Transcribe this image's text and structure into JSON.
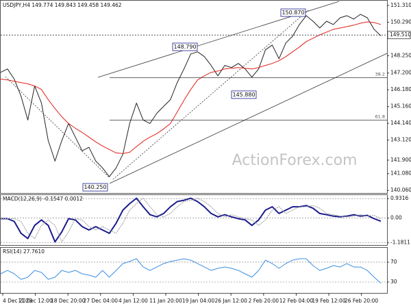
{
  "chart_data": [
    {
      "type": "line",
      "title": "USDJPY,H4 149.774 149.843 149.458 149.462",
      "watermark": "ActionForex.com",
      "ylim": [
        139.9,
        151.6
      ],
      "yticks": [
        {
          "value": 151.31,
          "label": "151.310"
        },
        {
          "value": 150.29,
          "label": "150.290"
        },
        {
          "value": 148.25,
          "label": "148.250"
        },
        {
          "value": 147.2,
          "label": "147.200"
        },
        {
          "value": 146.18,
          "label": "146.180"
        },
        {
          "value": 145.16,
          "label": "145.160"
        },
        {
          "value": 144.14,
          "label": "144.140"
        },
        {
          "value": 143.12,
          "label": "143.120"
        },
        {
          "value": 141.9,
          "label": "141.900"
        },
        {
          "value": 141.08,
          "label": "141.080"
        },
        {
          "value": 140.06,
          "label": "140.060"
        }
      ],
      "grid": false,
      "series": [
        {
          "color": "#222222",
          "values": [
            147.24,
            147.45,
            146.83,
            145.79,
            144.34,
            146.41,
            145.37,
            143.09,
            141.84,
            143.09,
            144.13,
            143.3,
            142.47,
            142.68,
            141.84,
            141.43,
            140.89,
            141.43,
            142.26,
            144.13,
            145.37,
            144.34,
            144.13,
            144.75,
            145.17,
            145.58,
            146.62,
            147.45,
            148.36,
            148.49,
            148.2,
            147.66,
            147.03,
            147.66,
            147.53,
            147.78,
            147.45,
            146.95,
            147.45,
            148.61,
            148.9,
            148.07,
            149.03,
            149.44,
            150.15,
            150.69,
            150.35,
            149.94,
            150.35,
            150.15,
            150.56,
            150.69,
            150.48,
            150.77,
            150.56,
            149.86,
            149.46
          ]
        },
        {
          "color": "#e0201a",
          "values": [
            146.83,
            146.78,
            146.7,
            146.62,
            146.54,
            146.41,
            146.2,
            145.58,
            145.04,
            144.54,
            144.13,
            143.84,
            143.59,
            143.3,
            143.01,
            142.76,
            142.55,
            142.34,
            142.3,
            142.38,
            142.72,
            143.05,
            143.3,
            143.51,
            143.8,
            144.13,
            144.83,
            145.54,
            146.2,
            146.78,
            147.03,
            147.24,
            147.32,
            147.45,
            147.49,
            147.53,
            147.49,
            147.45,
            147.53,
            147.66,
            147.78,
            147.95,
            148.2,
            148.49,
            148.78,
            149.11,
            149.32,
            149.52,
            149.69,
            149.86,
            149.94,
            150.02,
            150.11,
            150.23,
            150.31,
            150.27,
            150.15
          ]
        }
      ],
      "annotations": [
        {
          "label": "150.870",
          "value": 150.87
        },
        {
          "label": "148.790",
          "value": 148.79
        },
        {
          "label": "145.880",
          "value": 145.88
        },
        {
          "label": "140.250",
          "value": 140.25
        }
      ],
      "fib_levels": [
        {
          "label": "38.2",
          "value": 146.91
        },
        {
          "label": "61.8",
          "value": 144.34
        }
      ],
      "current_price": {
        "label": "149.510",
        "value": 149.51
      }
    },
    {
      "type": "line",
      "title": "MACD(12,26,9) -0.1547 0.0012",
      "ylim": [
        -1.29,
        1.1
      ],
      "yticks": [
        0.9316,
        {
          "value": 0,
          "label": "0.00"
        },
        -1.1811
      ],
      "grid": true,
      "series": [
        {
          "color": "#1a1a8c",
          "values": [
            -0.03,
            -0.03,
            -0.16,
            -0.73,
            -0.98,
            -0.35,
            -0.09,
            -0.35,
            -1.14,
            -0.66,
            -0.03,
            -0.09,
            -0.41,
            -0.57,
            -0.41,
            -0.57,
            -0.73,
            -0.25,
            0.38,
            0.69,
            0.95,
            0.54,
            0.16,
            0.06,
            0.22,
            0.54,
            0.79,
            0.85,
            0.95,
            0.79,
            0.54,
            0.22,
            0.06,
            0.16,
            0.06,
            -0.03,
            -0.09,
            -0.35,
            -0.09,
            0.38,
            0.54,
            0.22,
            0.38,
            0.54,
            0.54,
            0.6,
            0.47,
            0.22,
            0.16,
            0.09,
            0.06,
            0.09,
            0.16,
            0.09,
            0.13,
            -0.03,
            -0.15
          ]
        },
        {
          "color": "#9a9a9a",
          "values": [
            -0.03,
            -0.03,
            -0.03,
            -0.16,
            -0.73,
            -0.98,
            -0.35,
            -0.09,
            -0.35,
            -1.14,
            -0.66,
            -0.03,
            -0.09,
            -0.41,
            -0.57,
            -0.41,
            -0.57,
            -0.73,
            -0.25,
            0.38,
            0.69,
            0.95,
            0.54,
            0.16,
            0.06,
            0.22,
            0.54,
            0.79,
            0.85,
            0.95,
            0.79,
            0.54,
            0.22,
            0.06,
            0.16,
            0.06,
            -0.03,
            -0.09,
            -0.35,
            -0.09,
            0.38,
            0.54,
            0.22,
            0.38,
            0.54,
            0.54,
            0.6,
            0.47,
            0.22,
            0.16,
            0.09,
            0.06,
            0.09,
            0.16,
            0.09,
            0.13,
            -0.03
          ]
        }
      ]
    },
    {
      "type": "line",
      "title": "RSI(14) 27.7610",
      "ylim": [
        8,
        99
      ],
      "yticks": [
        70,
        30
      ],
      "grid": true,
      "series": [
        {
          "color": "#3b8fe0",
          "values": [
            46.6,
            53.4,
            46.6,
            35.5,
            39.7,
            53.4,
            49.3,
            35.5,
            39.7,
            53.4,
            49.3,
            53.4,
            46.6,
            43.8,
            39.7,
            53.4,
            39.7,
            53.4,
            67.2,
            71.4,
            76.9,
            60.3,
            53.4,
            60.3,
            67.2,
            71.4,
            74.1,
            76.9,
            74.1,
            67.2,
            60.3,
            53.4,
            57.6,
            60.3,
            57.6,
            53.4,
            46.6,
            39.7,
            53.4,
            74.1,
            67.2,
            57.6,
            67.2,
            74.1,
            76.9,
            76.9,
            63.1,
            53.4,
            57.6,
            63.1,
            60.3,
            67.2,
            60.3,
            60.3,
            53.4,
            39.7,
            27.76
          ]
        }
      ],
      "xtick_labels": [
        "4 Dec 2023",
        "11 Dec 12:00",
        "18 Dec 20:00",
        "27 Dec 04:00",
        "4 Jan 12:00",
        "11 Jan 20:00",
        "19 Jan 04:00",
        "26 Jan 12:00",
        "2 Feb 20:00",
        "12 Feb 04:00",
        "19 Feb 12:00",
        "26 Feb 20:00"
      ]
    }
  ]
}
